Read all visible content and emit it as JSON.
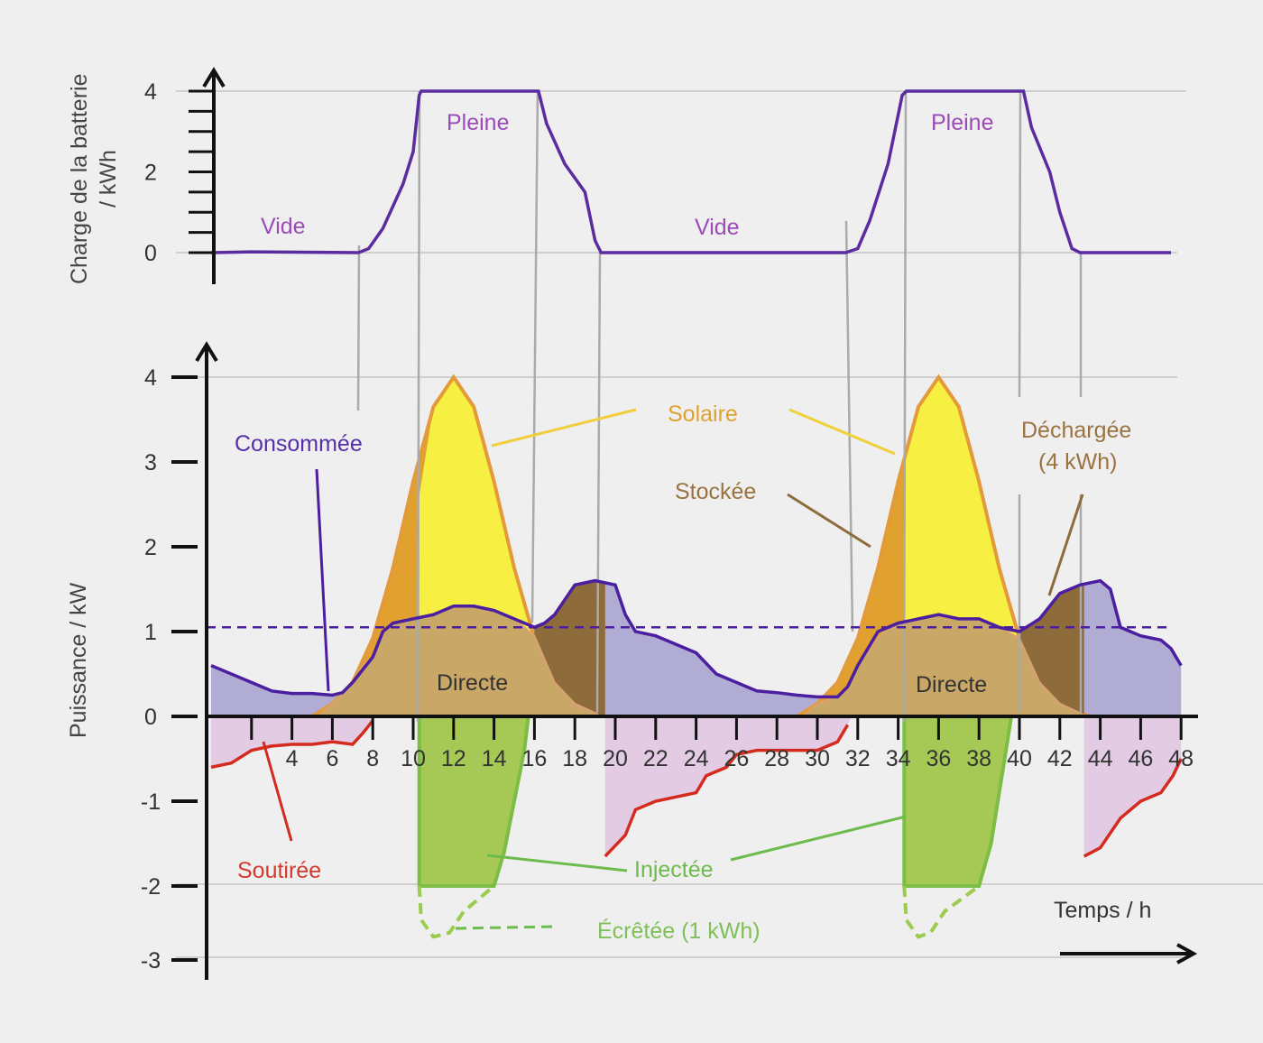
{
  "chart_data": [
    {
      "type": "line",
      "title": "Charge de la batterie",
      "ylabel": "Charge de la batterie / kWh",
      "ylim": [
        0,
        4
      ],
      "xlim": [
        0,
        48
      ],
      "yticks": [
        "0",
        "2",
        "4"
      ],
      "series": [
        {
          "name": "battery_charge",
          "color": "#5a2ca0",
          "points": [
            [
              0,
              0
            ],
            [
              2,
              0.02
            ],
            [
              7.3,
              0
            ],
            [
              7.8,
              0.1
            ],
            [
              8.5,
              0.6
            ],
            [
              9.5,
              1.7
            ],
            [
              10,
              2.5
            ],
            [
              10.3,
              3.9
            ],
            [
              10.4,
              4
            ],
            [
              16.2,
              4
            ],
            [
              16.6,
              3.2
            ],
            [
              17.5,
              2.2
            ],
            [
              18.5,
              1.5
            ],
            [
              19,
              0.3
            ],
            [
              19.3,
              0
            ],
            [
              19.6,
              0
            ],
            [
              31.4,
              0
            ],
            [
              32,
              0.1
            ],
            [
              32.6,
              0.8
            ],
            [
              33.5,
              2.2
            ],
            [
              34.2,
              3.9
            ],
            [
              34.4,
              4
            ],
            [
              40.2,
              4
            ],
            [
              40.6,
              3.1
            ],
            [
              41.5,
              2
            ],
            [
              42,
              1
            ],
            [
              42.6,
              0.1
            ],
            [
              43,
              0
            ],
            [
              47.5,
              0
            ]
          ]
        }
      ],
      "annotations": {
        "vide1": "Vide",
        "pleine1": "Pleine",
        "vide2": "Vide",
        "pleine2": "Pleine"
      }
    },
    {
      "type": "area",
      "ylabel": "Puissance / kW",
      "xlabel": "Temps / h",
      "ylim": [
        -3,
        4
      ],
      "xlim": [
        0,
        48
      ],
      "yticks": [
        "4",
        "3",
        "2",
        "1",
        "0",
        "-1",
        "-2",
        "-3"
      ],
      "xticks": [
        "4",
        "6",
        "8",
        "10",
        "12",
        "14",
        "16",
        "18",
        "20",
        "22",
        "24",
        "26",
        "28",
        "30",
        "32",
        "34",
        "36",
        "38",
        "40",
        "42",
        "44",
        "46",
        "48"
      ],
      "reference_line_kw": 1.05,
      "colors": {
        "consommee": "#4b1fa0",
        "consommee_fill": "#b0acd4",
        "solaire_stocke": "#e0a12e",
        "solaire_injecte": "#f7f043",
        "directe": "#c8a767",
        "dechargee": "#8d6b3b",
        "soutiree": "#d42b1e",
        "soutiree_fill": "#e2cbe3",
        "injectee": "#a6c955",
        "ecretee": "#9ccc4e"
      },
      "series": {
        "consommee": [
          [
            0,
            0.6
          ],
          [
            1,
            0.5
          ],
          [
            2,
            0.4
          ],
          [
            3,
            0.3
          ],
          [
            4,
            0.27
          ],
          [
            5,
            0.27
          ],
          [
            6,
            0.25
          ],
          [
            6.5,
            0.28
          ],
          [
            7,
            0.4
          ],
          [
            8,
            0.7
          ],
          [
            8.5,
            1.0
          ],
          [
            9,
            1.1
          ],
          [
            10,
            1.15
          ],
          [
            11,
            1.2
          ],
          [
            12,
            1.3
          ],
          [
            13,
            1.3
          ],
          [
            14,
            1.25
          ],
          [
            15,
            1.15
          ],
          [
            16,
            1.05
          ],
          [
            16.5,
            1.1
          ],
          [
            17,
            1.2
          ],
          [
            18,
            1.55
          ],
          [
            19,
            1.6
          ],
          [
            20,
            1.55
          ],
          [
            20.5,
            1.2
          ],
          [
            21,
            1.0
          ],
          [
            22,
            0.95
          ],
          [
            23,
            0.85
          ],
          [
            24,
            0.75
          ],
          [
            25,
            0.5
          ],
          [
            26,
            0.4
          ],
          [
            27,
            0.3
          ],
          [
            28,
            0.28
          ],
          [
            29,
            0.25
          ],
          [
            30,
            0.23
          ],
          [
            31,
            0.23
          ],
          [
            31.5,
            0.35
          ],
          [
            32,
            0.6
          ],
          [
            33,
            1.0
          ],
          [
            34,
            1.1
          ],
          [
            35,
            1.15
          ],
          [
            36,
            1.2
          ],
          [
            37,
            1.15
          ],
          [
            38,
            1.15
          ],
          [
            39,
            1.05
          ],
          [
            40,
            1.0
          ],
          [
            41,
            1.15
          ],
          [
            42,
            1.45
          ],
          [
            43,
            1.55
          ],
          [
            44,
            1.6
          ],
          [
            44.5,
            1.5
          ],
          [
            45,
            1.05
          ],
          [
            46,
            0.95
          ],
          [
            47,
            0.9
          ],
          [
            47.5,
            0.8
          ],
          [
            48,
            0.6
          ]
        ],
        "solaire_jour1": [
          [
            5,
            0
          ],
          [
            6,
            0.15
          ],
          [
            7,
            0.4
          ],
          [
            8,
            0.92
          ],
          [
            9,
            1.75
          ],
          [
            10,
            2.77
          ],
          [
            11,
            3.65
          ],
          [
            12,
            4
          ],
          [
            13,
            3.65
          ],
          [
            14,
            2.77
          ],
          [
            15,
            1.75
          ],
          [
            16,
            0.92
          ],
          [
            17,
            0.4
          ],
          [
            18,
            0.15
          ],
          [
            19,
            0.04
          ],
          [
            19.5,
            0
          ]
        ],
        "solaire_injecte_jour1": [
          [
            10.3,
            0
          ],
          [
            10.3,
            2.6
          ],
          [
            11,
            3.65
          ],
          [
            12,
            4
          ],
          [
            13,
            3.65
          ],
          [
            14,
            2.77
          ],
          [
            15,
            1.75
          ],
          [
            16,
            0.92
          ],
          [
            16,
            0
          ]
        ],
        "solaire_jour2": [
          [
            29,
            0
          ],
          [
            30,
            0.15
          ],
          [
            31,
            0.4
          ],
          [
            32,
            0.92
          ],
          [
            33,
            1.75
          ],
          [
            34,
            2.77
          ],
          [
            35,
            3.65
          ],
          [
            36,
            4
          ],
          [
            37,
            3.65
          ],
          [
            38,
            2.77
          ],
          [
            39,
            1.75
          ],
          [
            40,
            0.92
          ],
          [
            41,
            0.4
          ],
          [
            42,
            0.15
          ],
          [
            43,
            0.04
          ],
          [
            43.5,
            0
          ]
        ],
        "solaire_injecte_jour2": [
          [
            34.3,
            0
          ],
          [
            34.3,
            3.0
          ],
          [
            35,
            3.65
          ],
          [
            36,
            4
          ],
          [
            37,
            3.65
          ],
          [
            38,
            2.77
          ],
          [
            39,
            1.75
          ],
          [
            40,
            0.92
          ],
          [
            40,
            0
          ]
        ],
        "dechargee_jour1": [
          [
            16,
            0
          ],
          [
            16,
            1.05
          ],
          [
            16.5,
            1.1
          ],
          [
            17,
            1.2
          ],
          [
            18,
            1.55
          ],
          [
            19,
            1.6
          ],
          [
            19.5,
            1.58
          ],
          [
            19.5,
            0
          ]
        ],
        "dechargee_jour2": [
          [
            40,
            0
          ],
          [
            40,
            1.0
          ],
          [
            41,
            1.15
          ],
          [
            42,
            1.45
          ],
          [
            43,
            1.55
          ],
          [
            43.2,
            1.57
          ],
          [
            43.2,
            0
          ]
        ],
        "directe_jour1": [
          [
            5.3,
            0
          ],
          [
            6,
            0.15
          ],
          [
            7,
            0.4
          ],
          [
            7.5,
            0.6
          ],
          [
            8,
            0.7
          ],
          [
            8.5,
            1.0
          ],
          [
            9,
            1.1
          ],
          [
            10,
            1.15
          ],
          [
            11,
            1.2
          ],
          [
            12,
            1.3
          ],
          [
            13,
            1.3
          ],
          [
            14,
            1.25
          ],
          [
            15,
            1.15
          ],
          [
            16,
            0.95
          ],
          [
            17,
            0.4
          ],
          [
            18,
            0.15
          ],
          [
            19,
            0.04
          ],
          [
            19.3,
            0
          ]
        ],
        "directe_jour2": [
          [
            29.3,
            0
          ],
          [
            30,
            0.15
          ],
          [
            31,
            0.23
          ],
          [
            31.5,
            0.35
          ],
          [
            32,
            0.6
          ],
          [
            33,
            0.92
          ],
          [
            33.3,
            1.0
          ],
          [
            34,
            1.1
          ],
          [
            35,
            1.15
          ],
          [
            36,
            1.2
          ],
          [
            37,
            1.15
          ],
          [
            38,
            1.15
          ],
          [
            39,
            1.05
          ],
          [
            40,
            0.92
          ],
          [
            41,
            0.4
          ],
          [
            42,
            0.15
          ],
          [
            43,
            0.04
          ],
          [
            43.3,
            0
          ]
        ],
        "soutiree_nuit1": [
          [
            0,
            0
          ],
          [
            0,
            -0.6
          ],
          [
            1,
            -0.55
          ],
          [
            2,
            -0.4
          ],
          [
            3,
            -0.35
          ],
          [
            4,
            -0.33
          ],
          [
            5,
            -0.33
          ],
          [
            6,
            -0.3
          ],
          [
            7,
            -0.33
          ],
          [
            7.5,
            -0.2
          ],
          [
            8,
            -0.05
          ],
          [
            8,
            0
          ]
        ],
        "soutiree_soir1": [
          [
            19.5,
            0
          ],
          [
            19.5,
            -1.65
          ],
          [
            20.5,
            -1.4
          ],
          [
            21,
            -1.1
          ],
          [
            22,
            -1.0
          ],
          [
            23,
            -0.95
          ],
          [
            24,
            -0.9
          ],
          [
            24.5,
            -0.7
          ],
          [
            25.5,
            -0.6
          ],
          [
            26,
            -0.45
          ],
          [
            27,
            -0.4
          ],
          [
            30,
            -0.4
          ],
          [
            31,
            -0.3
          ],
          [
            31.5,
            -0.1
          ],
          [
            31.7,
            0
          ]
        ],
        "soutiree_soir2": [
          [
            43.2,
            0
          ],
          [
            43.2,
            -1.65
          ],
          [
            44,
            -1.55
          ],
          [
            45,
            -1.2
          ],
          [
            46,
            -1.0
          ],
          [
            47,
            -0.9
          ],
          [
            47.6,
            -0.7
          ],
          [
            48,
            -0.5
          ],
          [
            48,
            0
          ]
        ],
        "injectee_jour1": [
          [
            10.3,
            0
          ],
          [
            10.3,
            -2
          ],
          [
            14,
            -2
          ],
          [
            14.5,
            -1.6
          ],
          [
            15.5,
            -0.4
          ],
          [
            15.7,
            0
          ]
        ],
        "injectee_jour2": [
          [
            34.3,
            0
          ],
          [
            34.3,
            -2
          ],
          [
            38,
            -2
          ],
          [
            38.6,
            -1.5
          ],
          [
            39.4,
            -0.3
          ],
          [
            39.6,
            0
          ]
        ],
        "ecretee_jour1": [
          [
            10.3,
            -2
          ],
          [
            10.4,
            -2.4
          ],
          [
            11,
            -2.6
          ],
          [
            11.8,
            -2.55
          ],
          [
            12.5,
            -2.3
          ],
          [
            14,
            -2
          ]
        ],
        "ecretee_jour2": [
          [
            34.3,
            -2
          ],
          [
            34.4,
            -2.4
          ],
          [
            35,
            -2.6
          ],
          [
            35.6,
            -2.55
          ],
          [
            36.3,
            -2.3
          ],
          [
            38,
            -2
          ]
        ]
      },
      "annotations": {
        "consommee": "Consommée",
        "solaire": "Solaire",
        "stockee": "Stockée",
        "dechargee": "Déchargée",
        "dechargee_qty": "(4 kWh)",
        "directe1": "Directe",
        "directe2": "Directe",
        "soutiree": "Soutirée",
        "injectee": "Injectée",
        "ecretee": "Écrêtée (1 kWh)"
      }
    }
  ],
  "labels": {
    "top_ylabel_1": "Charge de la batterie",
    "top_ylabel_2": "/ kWh",
    "bottom_ylabel": "Puissance / kW",
    "xlabel": "Temps / h"
  }
}
